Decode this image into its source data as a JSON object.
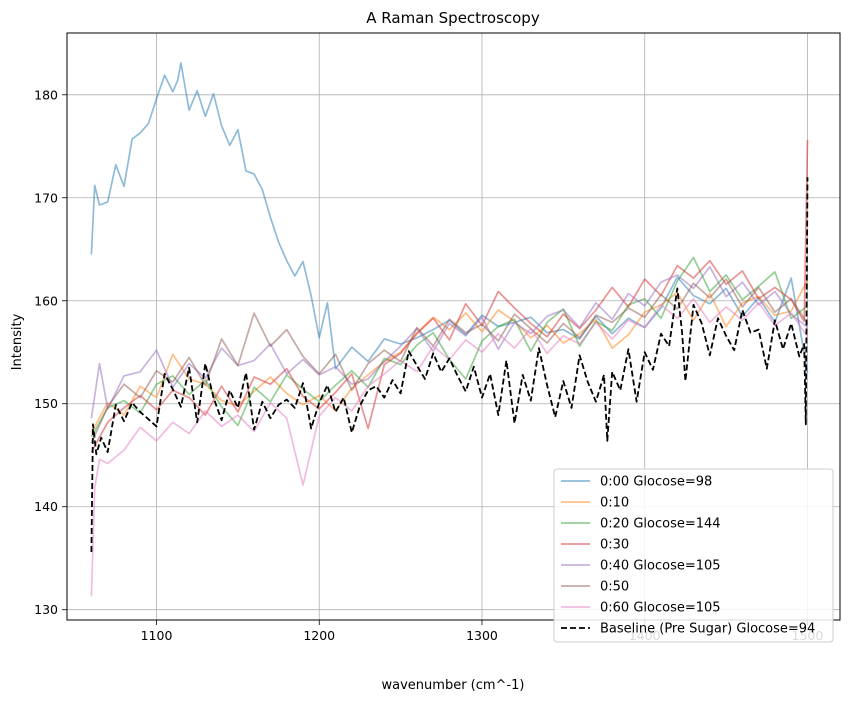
{
  "chart_data": {
    "type": "line",
    "title": "A Raman Spectroscopy",
    "xlabel": "wavenumber (cm^-1)",
    "ylabel": "Intensity",
    "xlim": [
      1045,
      1520
    ],
    "ylim": [
      129,
      186
    ],
    "xticks": [
      1100,
      1200,
      1300,
      1400,
      1500
    ],
    "yticks": [
      130,
      140,
      150,
      160,
      170,
      180
    ],
    "grid": true,
    "legend_position": "lower-right",
    "series": [
      {
        "name": "0:00 Glocose=98",
        "color": "#1f77b4",
        "dashed": false,
        "x": [
          1060,
          1062,
          1065,
          1070,
          1075,
          1080,
          1085,
          1090,
          1095,
          1100,
          1105,
          1110,
          1113,
          1115,
          1120,
          1125,
          1130,
          1135,
          1140,
          1145,
          1150,
          1155,
          1160,
          1165,
          1170,
          1175,
          1180,
          1185,
          1190,
          1195,
          1200,
          1205,
          1210,
          1220,
          1230,
          1240,
          1250,
          1260,
          1270,
          1280,
          1290,
          1300,
          1310,
          1320,
          1330,
          1340,
          1350,
          1360,
          1370,
          1380,
          1390,
          1400,
          1410,
          1420,
          1430,
          1440,
          1450,
          1460,
          1470,
          1480,
          1490,
          1500
        ],
        "values": [
          164.5,
          171.2,
          169.3,
          169.6,
          173.2,
          171.1,
          175.7,
          176.3,
          177.2,
          179.6,
          181.9,
          180.3,
          181.4,
          183.1,
          178.5,
          180.4,
          177.9,
          180.1,
          177.0,
          175.1,
          176.6,
          172.6,
          172.3,
          170.8,
          168.1,
          165.7,
          163.9,
          162.4,
          163.8,
          160.5,
          156.4,
          159.8,
          153.4,
          155.5,
          154.1,
          156.3,
          155.8,
          156.4,
          157.2,
          158.1,
          156.7,
          158.6,
          157.5,
          157.9,
          158.4,
          156.9,
          157.2,
          156.3,
          158.5,
          156.8,
          158.3,
          157.4,
          159.3,
          162.3,
          160.5,
          159.7,
          161.2,
          158.5,
          160.3,
          157.9,
          162.2,
          153.0
        ]
      },
      {
        "name": "0:10",
        "color": "#ff7f0e",
        "dashed": false,
        "x": [
          1060,
          1070,
          1080,
          1090,
          1100,
          1110,
          1120,
          1130,
          1140,
          1150,
          1160,
          1170,
          1180,
          1190,
          1200,
          1210,
          1220,
          1230,
          1240,
          1250,
          1260,
          1270,
          1280,
          1290,
          1300,
          1310,
          1320,
          1330,
          1340,
          1350,
          1360,
          1370,
          1380,
          1390,
          1400,
          1410,
          1420,
          1430,
          1440,
          1450,
          1460,
          1470,
          1480,
          1490,
          1500
        ],
        "values": [
          147.2,
          150.1,
          148.9,
          151.7,
          150.6,
          154.8,
          152.4,
          151.9,
          150.3,
          149.8,
          151.2,
          152.6,
          151.0,
          149.9,
          150.8,
          149.3,
          151.5,
          152.8,
          154.1,
          155.0,
          156.9,
          158.4,
          157.2,
          158.8,
          157.0,
          159.1,
          158.0,
          156.4,
          157.6,
          155.9,
          156.8,
          158.2,
          155.4,
          156.7,
          158.9,
          159.6,
          160.8,
          158.1,
          160.7,
          157.5,
          159.8,
          160.4,
          158.6,
          159.0,
          162.0
        ]
      },
      {
        "name": "0:20 Glocose=144",
        "color": "#2ca02c",
        "dashed": false,
        "x": [
          1060,
          1070,
          1080,
          1090,
          1100,
          1110,
          1120,
          1130,
          1140,
          1150,
          1160,
          1170,
          1180,
          1190,
          1200,
          1210,
          1220,
          1230,
          1240,
          1250,
          1260,
          1270,
          1280,
          1290,
          1300,
          1310,
          1320,
          1330,
          1340,
          1350,
          1360,
          1370,
          1380,
          1390,
          1400,
          1410,
          1420,
          1430,
          1440,
          1450,
          1460,
          1470,
          1480,
          1490,
          1500
        ],
        "values": [
          146.8,
          149.6,
          150.3,
          149.1,
          151.9,
          152.7,
          150.9,
          152.3,
          149.7,
          147.9,
          151.6,
          150.2,
          152.8,
          151.4,
          150.2,
          151.8,
          153.2,
          151.6,
          154.4,
          153.8,
          155.7,
          156.9,
          154.3,
          152.4,
          156.1,
          157.5,
          158.2,
          155.1,
          157.9,
          159.2,
          155.6,
          158.0,
          157.1,
          159.6,
          160.2,
          158.3,
          161.9,
          164.2,
          160.9,
          162.5,
          160.1,
          161.4,
          162.8,
          158.3,
          159.5
        ]
      },
      {
        "name": "0:30",
        "color": "#d62728",
        "dashed": false,
        "x": [
          1060,
          1070,
          1080,
          1090,
          1100,
          1110,
          1120,
          1130,
          1140,
          1150,
          1160,
          1170,
          1180,
          1190,
          1200,
          1210,
          1220,
          1230,
          1240,
          1250,
          1260,
          1270,
          1280,
          1290,
          1300,
          1310,
          1320,
          1330,
          1340,
          1350,
          1360,
          1370,
          1380,
          1390,
          1400,
          1410,
          1420,
          1430,
          1440,
          1450,
          1460,
          1470,
          1480,
          1490,
          1498,
          1500
        ],
        "values": [
          145.3,
          148.2,
          149.6,
          150.8,
          149.4,
          151.3,
          150.6,
          148.9,
          151.7,
          149.2,
          152.6,
          151.9,
          153.4,
          150.7,
          149.5,
          151.1,
          152.9,
          147.6,
          153.8,
          154.9,
          156.8,
          158.3,
          156.2,
          159.7,
          157.6,
          160.9,
          159.3,
          157.8,
          156.5,
          158.7,
          157.3,
          159.1,
          161.3,
          159.4,
          162.1,
          160.5,
          163.4,
          162.2,
          163.9,
          161.6,
          162.9,
          160.2,
          161.3,
          160.1,
          158.0,
          175.6
        ]
      },
      {
        "name": "0:40 Glocose=105",
        "color": "#9467bd",
        "dashed": false,
        "x": [
          1060,
          1065,
          1070,
          1080,
          1090,
          1100,
          1110,
          1120,
          1130,
          1140,
          1150,
          1160,
          1170,
          1180,
          1190,
          1200,
          1210,
          1220,
          1230,
          1240,
          1250,
          1260,
          1270,
          1280,
          1290,
          1300,
          1310,
          1320,
          1330,
          1340,
          1350,
          1360,
          1370,
          1380,
          1390,
          1400,
          1410,
          1420,
          1430,
          1440,
          1450,
          1460,
          1470,
          1480,
          1490,
          1500
        ],
        "values": [
          148.6,
          153.9,
          149.5,
          152.7,
          153.1,
          155.2,
          151.6,
          153.9,
          152.5,
          155.4,
          153.7,
          154.2,
          155.8,
          152.9,
          154.3,
          152.8,
          153.6,
          151.9,
          152.4,
          154.1,
          155.6,
          157.3,
          155.1,
          157.8,
          156.6,
          158.4,
          155.3,
          157.9,
          156.8,
          158.5,
          159.1,
          157.4,
          159.8,
          158.2,
          160.7,
          159.5,
          161.8,
          162.5,
          161.2,
          163.3,
          160.4,
          161.8,
          159.6,
          160.9,
          158.7,
          157.4
        ]
      },
      {
        "name": "0:50",
        "color": "#8c564b",
        "dashed": false,
        "x": [
          1060,
          1070,
          1080,
          1090,
          1100,
          1110,
          1120,
          1130,
          1140,
          1150,
          1160,
          1170,
          1180,
          1190,
          1200,
          1210,
          1220,
          1230,
          1240,
          1250,
          1260,
          1270,
          1280,
          1290,
          1300,
          1310,
          1320,
          1330,
          1340,
          1350,
          1360,
          1370,
          1380,
          1390,
          1400,
          1410,
          1420,
          1430,
          1440,
          1450,
          1460,
          1470,
          1480,
          1490,
          1500
        ],
        "values": [
          146.2,
          149.7,
          151.9,
          150.6,
          153.2,
          152.1,
          154.5,
          151.8,
          156.3,
          153.7,
          158.8,
          155.6,
          157.2,
          154.6,
          152.9,
          154.8,
          151.3,
          153.9,
          155.2,
          154.1,
          157.4,
          155.6,
          158.2,
          156.9,
          157.7,
          156.1,
          158.7,
          157.3,
          155.9,
          157.8,
          156.4,
          158.6,
          157.9,
          159.3,
          158.4,
          160.6,
          159.2,
          161.7,
          160.3,
          162.1,
          159.4,
          161.3,
          158.9,
          160.2,
          157.8
        ]
      },
      {
        "name": "0:60 Glocose=105",
        "color": "#e377c2",
        "dashed": false,
        "x": [
          1060,
          1062,
          1065,
          1070,
          1080,
          1090,
          1100,
          1110,
          1120,
          1130,
          1140,
          1150,
          1160,
          1170,
          1180,
          1190,
          1200,
          1210,
          1220,
          1230,
          1240,
          1250,
          1260,
          1270,
          1280,
          1290,
          1300,
          1310,
          1320,
          1330,
          1340,
          1350,
          1360,
          1370,
          1380,
          1390,
          1400,
          1410,
          1420,
          1430,
          1440,
          1450,
          1460,
          1470,
          1480,
          1490,
          1500
        ],
        "values": [
          131.3,
          141.8,
          144.6,
          144.2,
          145.5,
          147.7,
          146.4,
          148.2,
          147.1,
          149.3,
          147.8,
          148.9,
          147.3,
          150.1,
          148.6,
          142.1,
          148.8,
          150.6,
          149.3,
          151.7,
          152.9,
          154.2,
          153.1,
          155.6,
          154.3,
          156.2,
          155.0,
          156.8,
          155.4,
          157.3,
          154.9,
          156.6,
          155.8,
          157.9,
          156.3,
          158.1,
          157.4,
          159.6,
          158.3,
          160.2,
          157.9,
          159.4,
          158.1,
          159.8,
          157.6,
          158.8,
          156.5
        ]
      },
      {
        "name": "Baseline (Pre Sugar) Glocose=94",
        "color": "#000000",
        "dashed": true,
        "x": [
          1060,
          1061,
          1063,
          1066,
          1070,
          1075,
          1080,
          1085,
          1090,
          1095,
          1100,
          1105,
          1110,
          1115,
          1120,
          1125,
          1130,
          1135,
          1140,
          1145,
          1150,
          1155,
          1160,
          1165,
          1170,
          1175,
          1180,
          1185,
          1190,
          1195,
          1200,
          1205,
          1210,
          1215,
          1220,
          1225,
          1230,
          1235,
          1240,
          1245,
          1250,
          1255,
          1260,
          1265,
          1270,
          1275,
          1280,
          1285,
          1290,
          1295,
          1300,
          1305,
          1310,
          1315,
          1320,
          1325,
          1330,
          1335,
          1340,
          1345,
          1350,
          1355,
          1360,
          1365,
          1370,
          1375,
          1377,
          1380,
          1385,
          1390,
          1395,
          1400,
          1405,
          1410,
          1415,
          1420,
          1423,
          1425,
          1430,
          1435,
          1440,
          1445,
          1450,
          1455,
          1460,
          1465,
          1470,
          1475,
          1480,
          1485,
          1490,
          1495,
          1498,
          1499,
          1500
        ],
        "values": [
          135.6,
          148.0,
          145.1,
          146.7,
          145.3,
          149.9,
          148.3,
          150.1,
          149.2,
          148.5,
          147.8,
          152.9,
          151.4,
          149.7,
          153.5,
          148.2,
          153.9,
          150.6,
          148.4,
          151.3,
          149.6,
          153.0,
          147.5,
          150.2,
          148.6,
          149.9,
          150.4,
          149.6,
          152.0,
          147.6,
          150.1,
          151.8,
          149.2,
          150.6,
          147.2,
          149.8,
          151.3,
          151.7,
          150.6,
          152.3,
          151.0,
          155.1,
          153.7,
          152.4,
          154.9,
          153.1,
          154.4,
          152.7,
          151.2,
          153.6,
          150.6,
          152.9,
          148.9,
          154.2,
          148.1,
          152.8,
          150.3,
          155.4,
          151.8,
          148.7,
          152.2,
          149.6,
          154.7,
          152.1,
          150.2,
          152.8,
          146.4,
          153.1,
          151.3,
          155.3,
          150.2,
          155.0,
          153.3,
          156.8,
          155.6,
          161.2,
          156.9,
          152.2,
          159.6,
          157.8,
          154.7,
          158.3,
          156.6,
          155.2,
          159.1,
          156.9,
          157.2,
          153.4,
          158.1,
          155.3,
          157.8,
          154.6,
          155.8,
          148.0,
          172.0
        ]
      }
    ]
  }
}
